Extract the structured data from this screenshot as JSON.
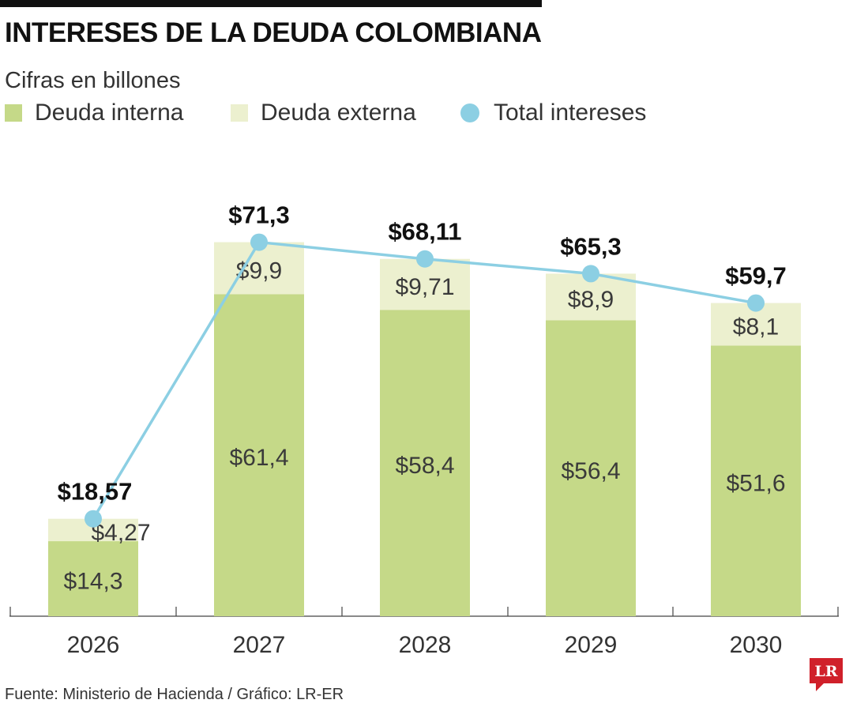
{
  "header": {
    "title": "INTERESES DE LA DEUDA COLOMBIANA",
    "subtitle": "Cifras en billones"
  },
  "legend": [
    {
      "label": "Deuda interna",
      "color": "#c5d988",
      "shape": "square"
    },
    {
      "label": "Deuda externa",
      "color": "#ecf0cf",
      "shape": "square"
    },
    {
      "label": "Total intereses",
      "color": "#8ccfe3",
      "shape": "circle"
    }
  ],
  "chart_data": {
    "type": "bar",
    "stacked": true,
    "categories": [
      "2026",
      "2027",
      "2028",
      "2029",
      "2030"
    ],
    "series": [
      {
        "name": "Deuda interna",
        "values": [
          14.3,
          61.4,
          58.4,
          56.4,
          51.6
        ],
        "labels": [
          "$14,3",
          "$61,4",
          "$58,4",
          "$56,4",
          "$51,6"
        ],
        "color": "#c5d988"
      },
      {
        "name": "Deuda externa",
        "values": [
          4.27,
          9.9,
          9.71,
          8.9,
          8.1
        ],
        "labels": [
          "$4,27",
          "$9,9",
          "$9,71",
          "$8,9",
          "$8,1"
        ],
        "color": "#ecf0cf"
      },
      {
        "name": "Total intereses",
        "type": "line",
        "values": [
          18.57,
          71.3,
          68.11,
          65.3,
          59.7
        ],
        "labels": [
          "$18,57",
          "$71,3",
          "$68,11",
          "$65,3",
          "$59,7"
        ],
        "color": "#8ccfe3"
      }
    ],
    "ylim": [
      0,
      80
    ],
    "grid": false
  },
  "footer": {
    "source": "Fuente: Ministerio de Hacienda / Gráfico: LR-ER",
    "logo_text": "LR",
    "logo_color": "#d0202a"
  }
}
